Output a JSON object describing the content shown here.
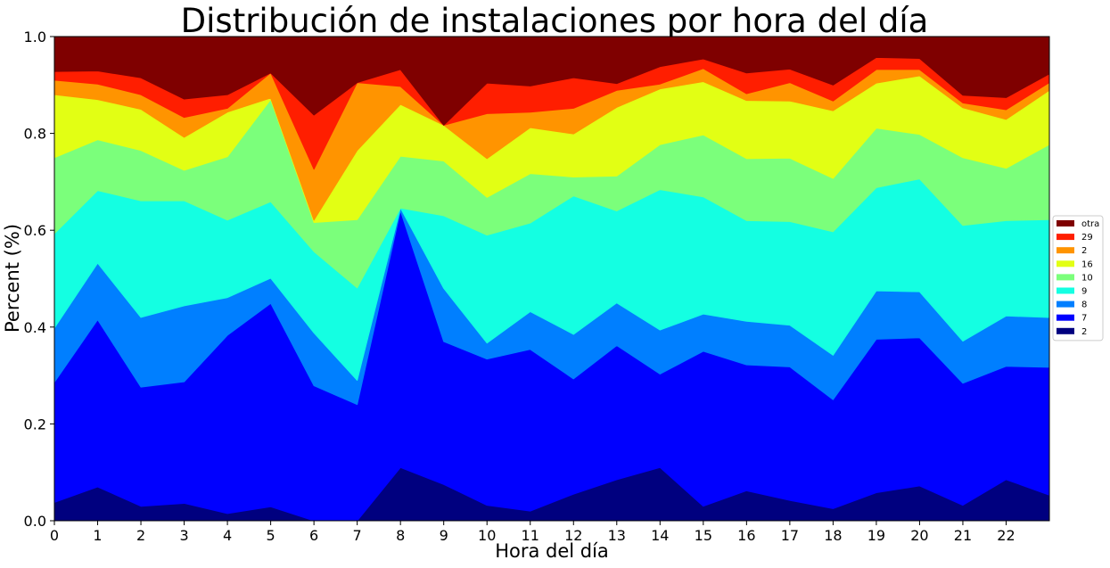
{
  "chart_data": {
    "type": "area",
    "stacked": true,
    "normalized": true,
    "title": "Distribución de instalaciones por hora del día",
    "xlabel": "Hora del día",
    "ylabel": "Percent (%)",
    "xlim": [
      0,
      23
    ],
    "ylim": [
      0,
      1.0
    ],
    "x": [
      0,
      1,
      2,
      3,
      4,
      5,
      6,
      7,
      8,
      9,
      10,
      11,
      12,
      13,
      14,
      15,
      16,
      17,
      18,
      19,
      20,
      21,
      22,
      23
    ],
    "xticks": [
      0,
      1,
      2,
      3,
      4,
      5,
      6,
      7,
      8,
      9,
      10,
      11,
      12,
      13,
      14,
      15,
      16,
      17,
      18,
      19,
      20,
      21,
      22
    ],
    "yticks": [
      0.0,
      0.2,
      0.4,
      0.6,
      0.8,
      1.0
    ],
    "ytick_labels": [
      "0.0",
      "0.2",
      "0.4",
      "0.6",
      "0.8",
      "1.0"
    ],
    "grid": false,
    "legend_position": "right",
    "series": [
      {
        "name": "2",
        "color": "#00007f",
        "values": [
          0.038,
          0.07,
          0.03,
          0.036,
          0.015,
          0.029,
          0.0,
          0.0,
          0.11,
          0.075,
          0.032,
          0.02,
          0.055,
          0.085,
          0.11,
          0.03,
          0.062,
          0.042,
          0.025,
          0.058,
          0.072,
          0.032,
          0.085,
          0.053
        ]
      },
      {
        "name": "7",
        "color": "#0000ff",
        "values": [
          0.248,
          0.345,
          0.246,
          0.251,
          0.368,
          0.42,
          0.279,
          0.24,
          0.53,
          0.295,
          0.302,
          0.334,
          0.238,
          0.277,
          0.193,
          0.32,
          0.26,
          0.276,
          0.225,
          0.317,
          0.306,
          0.252,
          0.234,
          0.264
        ]
      },
      {
        "name": "8",
        "color": "#007fff",
        "values": [
          0.112,
          0.117,
          0.144,
          0.157,
          0.078,
          0.052,
          0.109,
          0.05,
          0.006,
          0.11,
          0.033,
          0.078,
          0.092,
          0.088,
          0.091,
          0.077,
          0.09,
          0.086,
          0.092,
          0.1,
          0.095,
          0.087,
          0.104,
          0.103
        ]
      },
      {
        "name": "9",
        "color": "#14ffe2",
        "values": [
          0.195,
          0.15,
          0.241,
          0.217,
          0.16,
          0.158,
          0.168,
          0.191,
          0.0,
          0.15,
          0.223,
          0.183,
          0.286,
          0.19,
          0.29,
          0.242,
          0.208,
          0.214,
          0.255,
          0.213,
          0.233,
          0.239,
          0.197,
          0.202
        ]
      },
      {
        "name": "10",
        "color": "#7bff7b",
        "values": [
          0.157,
          0.105,
          0.104,
          0.063,
          0.131,
          0.211,
          0.06,
          0.141,
          0.107,
          0.113,
          0.078,
          0.102,
          0.039,
          0.072,
          0.093,
          0.128,
          0.128,
          0.131,
          0.11,
          0.123,
          0.092,
          0.14,
          0.108,
          0.155
        ]
      },
      {
        "name": "16",
        "color": "#e2ff14",
        "values": [
          0.13,
          0.083,
          0.085,
          0.068,
          0.092,
          0.003,
          0.005,
          0.143,
          0.107,
          0.074,
          0.08,
          0.095,
          0.089,
          0.142,
          0.115,
          0.11,
          0.12,
          0.118,
          0.14,
          0.093,
          0.121,
          0.103,
          0.101,
          0.112
        ]
      },
      {
        "name": "2",
        "color": "#ff9400",
        "values": [
          0.03,
          0.032,
          0.03,
          0.041,
          0.008,
          0.052,
          0.105,
          0.14,
          0.037,
          0.0,
          0.093,
          0.032,
          0.053,
          0.035,
          0.01,
          0.027,
          0.014,
          0.038,
          0.02,
          0.028,
          0.013,
          0.01,
          0.02,
          0.016
        ]
      },
      {
        "name": "29",
        "color": "#ff1e00",
        "values": [
          0.018,
          0.027,
          0.035,
          0.038,
          0.028,
          0.0,
          0.112,
          0.0,
          0.035,
          0.0,
          0.063,
          0.054,
          0.063,
          0.014,
          0.036,
          0.02,
          0.043,
          0.028,
          0.033,
          0.025,
          0.023,
          0.016,
          0.025,
          0.018
        ]
      },
      {
        "name": "otra",
        "color": "#7f0000",
        "values": [
          0.072,
          0.071,
          0.085,
          0.129,
          0.12,
          0.075,
          0.162,
          0.095,
          0.068,
          0.183,
          0.096,
          0.102,
          0.085,
          0.097,
          0.062,
          0.046,
          0.075,
          0.067,
          0.1,
          0.043,
          0.045,
          0.121,
          0.126,
          0.077
        ]
      }
    ]
  }
}
